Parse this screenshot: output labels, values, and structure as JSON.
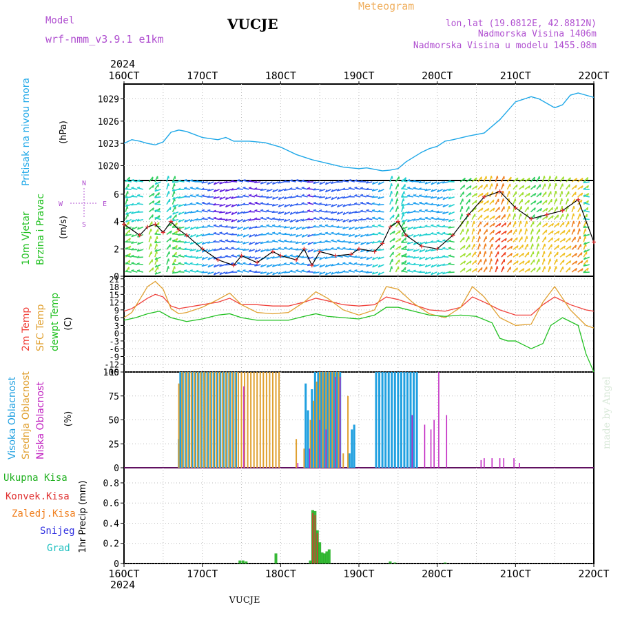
{
  "header": {
    "model_label": "Model",
    "model_name": "wrf-nmm_v3.9.1  e1km",
    "station": "VUCJE",
    "chart_kind": "Meteogram",
    "lonlat": "lon,lat (19.0812E, 42.8812N)",
    "elevation": "Nadmorska Visina 1406m",
    "model_elevation": "Nadmorska Visina u modelu 1455.08m",
    "year": "2024",
    "footer_station": "VUCJE",
    "credit": "made by Angel"
  },
  "colors": {
    "pressure": "#1fa8e8",
    "temp2m": "#f0403a",
    "sfc_temp": "#e0a030",
    "dewpt": "#20c020",
    "high_cloud": "#20a0e0",
    "mid_cloud": "#e0a030",
    "low_cloud": "#c020c0",
    "total_precip": "#20b020",
    "conv_precip": "#e03030",
    "frozen_precip": "#f08020",
    "snow": "#3030e0",
    "graupel": "#20c0c0",
    "wind_label": "#20c020",
    "model_text": "#b050d0",
    "meteogram_text": "#f0b060"
  },
  "chart_data": [
    {
      "type": "line",
      "title": "Pritisak na nivou mora",
      "ylabel": "(hPa)",
      "ylim": [
        1018,
        1031
      ],
      "yticks": [
        1020,
        1023,
        1026,
        1029
      ],
      "grid": true,
      "x_ticks": [
        "16OCT",
        "17OCT",
        "18OCT",
        "19OCT",
        "20OCT",
        "21OCT",
        "22OCT"
      ],
      "x_range_days": [
        16,
        22
      ],
      "series": [
        {
          "name": "Pritisak na nivou mora",
          "x": [
            16.0,
            16.1,
            16.2,
            16.3,
            16.4,
            16.5,
            16.6,
            16.7,
            16.8,
            17.0,
            17.2,
            17.3,
            17.4,
            17.6,
            17.8,
            18.0,
            18.2,
            18.4,
            18.6,
            18.8,
            19.0,
            19.1,
            19.2,
            19.3,
            19.4,
            19.5,
            19.6,
            19.8,
            19.9,
            20.0,
            20.1,
            20.2,
            20.4,
            20.6,
            20.8,
            21.0,
            21.2,
            21.3,
            21.4,
            21.5,
            21.6,
            21.7,
            21.8,
            22.0
          ],
          "values": [
            1023.0,
            1023.5,
            1023.3,
            1023.0,
            1022.8,
            1023.2,
            1024.5,
            1024.8,
            1024.6,
            1023.8,
            1023.5,
            1023.8,
            1023.3,
            1023.3,
            1023.1,
            1022.5,
            1021.5,
            1020.8,
            1020.3,
            1019.8,
            1019.6,
            1019.7,
            1019.5,
            1019.3,
            1019.4,
            1019.6,
            1020.5,
            1021.8,
            1022.3,
            1022.6,
            1023.3,
            1023.5,
            1024.0,
            1024.4,
            1026.2,
            1028.6,
            1029.3,
            1029.0,
            1028.4,
            1027.8,
            1028.2,
            1029.5,
            1029.8,
            1029.2
          ]
        }
      ]
    },
    {
      "type": "line",
      "title": "10m Vjetar Brzina i Pravac",
      "ylabel": "(m/s)",
      "ylim": [
        0,
        7
      ],
      "yticks": [
        0,
        2,
        4,
        6
      ],
      "grid": true,
      "compass": {
        "north": "N",
        "east": "E",
        "west": "W",
        "south": "S"
      },
      "series": [
        {
          "name": "10m Vjetar",
          "x": [
            16.0,
            16.2,
            16.3,
            16.4,
            16.5,
            16.6,
            16.7,
            16.8,
            17.0,
            17.2,
            17.4,
            17.5,
            17.7,
            17.9,
            18.0,
            18.2,
            18.3,
            18.4,
            18.5,
            18.7,
            18.9,
            19.0,
            19.2,
            19.3,
            19.4,
            19.5,
            19.6,
            19.8,
            20.0,
            20.2,
            20.4,
            20.6,
            20.8,
            21.0,
            21.2,
            21.4,
            21.6,
            21.8,
            22.0
          ],
          "values": [
            3.8,
            3.0,
            3.6,
            3.8,
            3.2,
            4.0,
            3.4,
            3.0,
            2.0,
            1.2,
            0.8,
            1.5,
            1.0,
            1.8,
            1.5,
            1.2,
            2.0,
            0.8,
            1.8,
            1.5,
            1.6,
            2.0,
            1.8,
            2.4,
            3.6,
            4.0,
            3.0,
            2.2,
            2.0,
            3.0,
            4.5,
            5.8,
            6.2,
            5.0,
            4.2,
            4.5,
            4.8,
            5.6,
            2.5
          ]
        }
      ]
    },
    {
      "type": "line",
      "title": "2m Temp / SFC Temp / dewpt Temp",
      "ylabel": "(C)",
      "ylim": [
        -15,
        22
      ],
      "yticks": [
        21,
        18,
        15,
        12,
        9,
        6,
        3,
        0,
        -3,
        -6,
        -9,
        -12,
        -15
      ],
      "grid": true,
      "series": [
        {
          "name": "2m Temp",
          "x": [
            16.0,
            16.1,
            16.2,
            16.3,
            16.4,
            16.5,
            16.6,
            16.7,
            16.8,
            17.0,
            17.2,
            17.35,
            17.5,
            17.7,
            17.9,
            18.1,
            18.3,
            18.45,
            18.6,
            18.8,
            19.0,
            19.2,
            19.35,
            19.5,
            19.7,
            19.9,
            20.1,
            20.3,
            20.45,
            20.6,
            20.8,
            21.0,
            21.2,
            21.35,
            21.5,
            21.7,
            21.9,
            22.0
          ],
          "values": [
            8.5,
            9.5,
            11.5,
            13.5,
            15.0,
            14.0,
            10.5,
            9.5,
            10.0,
            11.0,
            12.0,
            13.5,
            11.0,
            11.0,
            10.5,
            10.5,
            12.0,
            13.5,
            12.5,
            11.0,
            10.5,
            11.0,
            14.0,
            13.0,
            11.0,
            9.0,
            8.5,
            10.0,
            14.0,
            12.0,
            9.0,
            7.0,
            7.0,
            11.0,
            14.0,
            11.0,
            9.0,
            8.5
          ]
        },
        {
          "name": "SFC Temp",
          "x": [
            16.0,
            16.1,
            16.2,
            16.3,
            16.4,
            16.5,
            16.6,
            16.7,
            16.8,
            17.0,
            17.2,
            17.35,
            17.5,
            17.7,
            17.9,
            18.1,
            18.3,
            18.45,
            18.6,
            18.8,
            19.0,
            19.2,
            19.35,
            19.5,
            19.7,
            19.9,
            20.1,
            20.3,
            20.45,
            20.6,
            20.8,
            21.0,
            21.2,
            21.35,
            21.5,
            21.7,
            21.9,
            22.0
          ],
          "values": [
            6.0,
            8.0,
            13.0,
            18.0,
            20.0,
            17.0,
            9.5,
            7.5,
            8.0,
            10.0,
            13.0,
            15.5,
            11.0,
            8.0,
            7.5,
            8.0,
            12.0,
            16.0,
            13.5,
            9.0,
            7.0,
            9.0,
            18.0,
            17.0,
            11.5,
            7.5,
            6.0,
            10.0,
            18.0,
            14.0,
            6.0,
            3.0,
            3.5,
            12.0,
            18.0,
            9.0,
            3.0,
            2.0
          ]
        },
        {
          "name": "dewpt Temp",
          "x": [
            16.0,
            16.15,
            16.3,
            16.45,
            16.6,
            16.8,
            17.0,
            17.2,
            17.35,
            17.5,
            17.7,
            17.9,
            18.1,
            18.3,
            18.45,
            18.6,
            18.8,
            19.0,
            19.2,
            19.35,
            19.5,
            19.7,
            19.9,
            20.1,
            20.3,
            20.5,
            20.7,
            20.8,
            20.9,
            21.0,
            21.2,
            21.35,
            21.45,
            21.6,
            21.8,
            21.9,
            22.0
          ],
          "values": [
            5.0,
            6.0,
            7.5,
            8.5,
            6.0,
            4.5,
            5.5,
            7.0,
            7.5,
            6.0,
            5.0,
            5.0,
            5.0,
            6.5,
            7.5,
            6.5,
            6.0,
            5.5,
            7.0,
            10.0,
            10.0,
            8.5,
            7.0,
            6.5,
            7.0,
            6.5,
            4.0,
            -2.0,
            -3.0,
            -3.0,
            -6.0,
            -4.0,
            3.0,
            6.0,
            3.0,
            -8.0,
            -15.0
          ]
        }
      ]
    },
    {
      "type": "bar",
      "title": "Visoka Oblacnost / Srednja Oblacnost / Niska Oblacnost",
      "ylabel": "(%)",
      "ylim": [
        0,
        100
      ],
      "yticks": [
        0,
        25,
        50,
        75,
        100
      ],
      "grid": true,
      "series": [
        {
          "name": "Visoka Oblacnost",
          "x": [
            16.7,
            16.72,
            16.75,
            16.79,
            16.83,
            16.87,
            16.91,
            16.95,
            16.99,
            17.03,
            17.07,
            17.11,
            17.15,
            17.19,
            17.23,
            17.27,
            17.31,
            17.35,
            17.39,
            17.43,
            18.32,
            18.35,
            18.4,
            18.44,
            18.48,
            18.52,
            18.56,
            18.6,
            18.64,
            18.68,
            18.72,
            18.76,
            18.88,
            18.91,
            18.94,
            19.22,
            19.26,
            19.3,
            19.34,
            19.38,
            19.42,
            19.46,
            19.5,
            19.54,
            19.58,
            19.62,
            19.66,
            19.7,
            19.74
          ],
          "values": [
            30,
            100,
            100,
            100,
            100,
            100,
            100,
            100,
            100,
            100,
            100,
            100,
            100,
            100,
            100,
            100,
            100,
            100,
            100,
            100,
            88,
            60,
            82,
            100,
            100,
            100,
            100,
            100,
            100,
            100,
            100,
            100,
            15,
            40,
            45,
            100,
            100,
            100,
            100,
            100,
            100,
            100,
            100,
            100,
            100,
            100,
            100,
            100,
            100
          ]
        },
        {
          "name": "Srednja Oblacnost",
          "x": [
            16.7,
            16.74,
            16.78,
            16.82,
            16.86,
            16.9,
            16.94,
            16.98,
            17.02,
            17.06,
            17.1,
            17.14,
            17.18,
            17.22,
            17.26,
            17.3,
            17.34,
            17.38,
            17.42,
            17.46,
            17.5,
            17.54,
            17.58,
            17.62,
            17.66,
            17.7,
            17.74,
            17.78,
            17.82,
            17.86,
            17.9,
            17.94,
            17.98,
            18.2,
            18.3,
            18.38,
            18.42,
            18.46,
            18.5,
            18.54,
            18.58,
            18.62,
            18.66,
            18.7,
            18.74,
            18.8,
            18.86
          ],
          "values": [
            88,
            100,
            100,
            100,
            100,
            100,
            100,
            100,
            100,
            100,
            100,
            100,
            100,
            100,
            100,
            100,
            100,
            100,
            100,
            100,
            100,
            100,
            100,
            100,
            100,
            100,
            100,
            100,
            100,
            100,
            100,
            100,
            100,
            30,
            20,
            50,
            70,
            90,
            100,
            100,
            100,
            100,
            100,
            100,
            100,
            15,
            75
          ]
        },
        {
          "name": "Niska Oblacnost",
          "x": [
            17.53,
            18.22,
            18.37,
            18.5,
            18.58,
            18.7,
            18.76,
            19.68,
            19.84,
            19.92,
            19.96,
            20.02,
            20.12,
            20.56,
            20.6,
            20.7,
            20.8,
            20.85,
            20.98,
            21.05
          ],
          "values": [
            85,
            5,
            20,
            50,
            40,
            95,
            95,
            55,
            45,
            40,
            50,
            100,
            55,
            8,
            10,
            10,
            10,
            10,
            10,
            5
          ]
        }
      ]
    },
    {
      "type": "bar",
      "title": "1hr Precip",
      "ylabel": "1hr Precip (mm)",
      "ylim": [
        0,
        0.95
      ],
      "yticks": [
        0,
        0.2,
        0.4,
        0.6,
        0.8
      ],
      "grid": true,
      "legend": [
        "Ukupna Kisa",
        "Konvek.Kisa",
        "Zaledj.Kisa",
        "Snijeg",
        "Grad"
      ],
      "series": [
        {
          "name": "Ukupna Kisa",
          "x": [
            17.48,
            17.52,
            17.56,
            17.94,
            18.38,
            18.41,
            18.44,
            18.47,
            18.5,
            18.53,
            18.56,
            18.59,
            18.62,
            19.4,
            19.46,
            20.1
          ],
          "values": [
            0.03,
            0.03,
            0.02,
            0.1,
            0.03,
            0.53,
            0.52,
            0.33,
            0.21,
            0.11,
            0.1,
            0.12,
            0.14,
            0.02,
            0.01,
            0.01
          ]
        },
        {
          "name": "Konvek.Kisa",
          "x": [
            18.41,
            18.44,
            18.47
          ],
          "values": [
            0.5,
            0.48,
            0.3
          ]
        }
      ]
    }
  ]
}
